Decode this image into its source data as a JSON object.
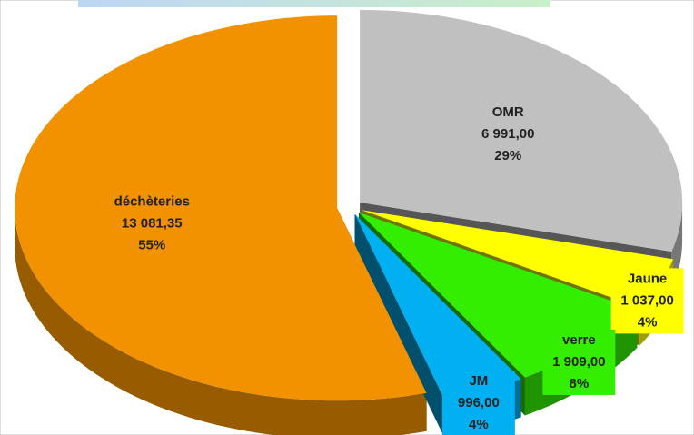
{
  "chart_data": {
    "type": "pie",
    "categories": [
      "OMR",
      "Jaune",
      "verre",
      "JM",
      "déchèteries"
    ],
    "values": [
      6991.0,
      1037.0,
      1909.0,
      996.0,
      13081.35
    ],
    "value_labels": [
      "6 991,00",
      "1 037,00",
      "1 909,00",
      "996,00",
      "13 081,35"
    ],
    "percent_labels": [
      "29%",
      "4%",
      "8%",
      "4%",
      "55%"
    ],
    "colors": [
      "#c0c0c0",
      "#ffff00",
      "#33ee00",
      "#00b0f0",
      "#f39200"
    ]
  }
}
